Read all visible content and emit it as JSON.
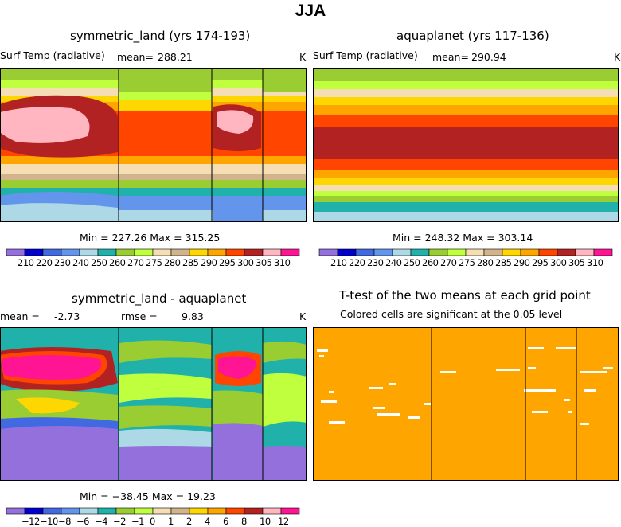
{
  "title": "JJA",
  "panels": {
    "land": {
      "title": "symmetric_land (yrs 174-193)",
      "variable": "Surf Temp (radiative)",
      "mean_label": "mean=",
      "mean_value": "288.21",
      "units": "K",
      "minmax": "Min = 227.26 Max = 315.25"
    },
    "aqua": {
      "title": "aquaplanet (yrs 117-136)",
      "variable": "Surf Temp (radiative)",
      "mean_label": "mean=",
      "mean_value": "290.94",
      "units": "K",
      "minmax": "Min = 248.32 Max = 303.14"
    },
    "diff": {
      "title": "symmetric_land - aquaplanet",
      "mean_label": "mean =",
      "mean_value": "-2.73",
      "rmse_label": "rmse =",
      "rmse_value": "9.83",
      "units": "K",
      "minmax": "Min = −38.45 Max =  19.23"
    },
    "ttest": {
      "title": "T-test of the two means at each grid point",
      "subtitle": "Colored cells are significant at the 0.05 level"
    }
  },
  "colors": {
    "palette": [
      "#9370db",
      "#0000cd",
      "#4169e1",
      "#6495ed",
      "#add8e6",
      "#20b2aa",
      "#9acd32",
      "#c0ff3e",
      "#f5deb3",
      "#d2b48c",
      "#ffd700",
      "#ffa500",
      "#ff4500",
      "#b22222",
      "#ffb6c1",
      "#ff1493"
    ],
    "significant": "#ffa500",
    "outline": "#000000"
  },
  "chart_data": [
    {
      "type": "heatmap",
      "name": "symmetric_land",
      "colorbar_levels": [
        "210",
        "220",
        "230",
        "240",
        "250",
        "260",
        "270",
        "275",
        "280",
        "285",
        "290",
        "295",
        "300",
        "305",
        "310"
      ],
      "min": 227.26,
      "max": 315.25,
      "mean": 288.21
    },
    {
      "type": "heatmap",
      "name": "aquaplanet",
      "colorbar_levels": [
        "210",
        "220",
        "230",
        "240",
        "250",
        "260",
        "270",
        "275",
        "280",
        "285",
        "290",
        "295",
        "300",
        "305",
        "310"
      ],
      "min": 248.32,
      "max": 303.14,
      "mean": 290.94
    },
    {
      "type": "heatmap",
      "name": "difference",
      "colorbar_levels": [
        "−12",
        "−10",
        "−8",
        "−6",
        "−4",
        "−2",
        "−1",
        "0",
        "1",
        "2",
        "4",
        "6",
        "8",
        "10",
        "12"
      ],
      "min": -38.45,
      "max": 19.23,
      "mean": -2.73,
      "rmse": 9.83
    },
    {
      "type": "heatmap",
      "name": "t-test significance",
      "significance_level": 0.05
    }
  ]
}
